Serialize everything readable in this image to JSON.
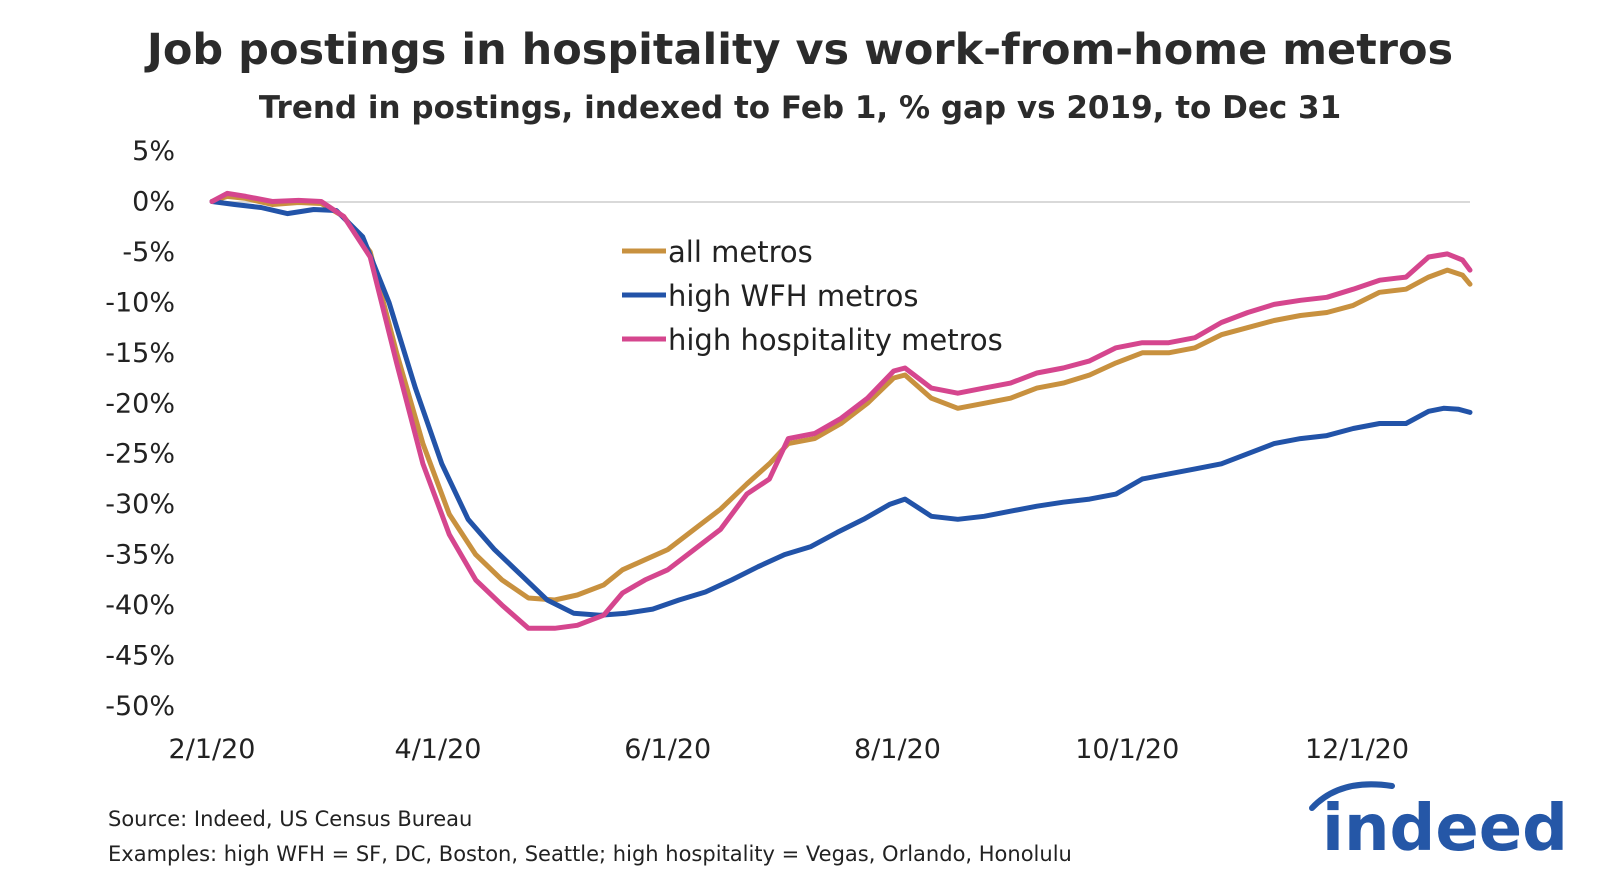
{
  "chart_data": {
    "type": "line",
    "title": "Job postings in hospitality vs work-from-home metros",
    "subtitle": "Trend in postings, indexed to Feb 1, % gap vs 2019, to Dec 31",
    "xlabel": "",
    "ylabel": "",
    "ylim": [
      -50,
      5
    ],
    "yticks": [
      "5%",
      "0%",
      "-5%",
      "-10%",
      "-15%",
      "-20%",
      "-25%",
      "-30%",
      "-35%",
      "-40%",
      "-45%",
      "-50%"
    ],
    "xticks": [
      "2/1/20",
      "4/1/20",
      "6/1/20",
      "8/1/20",
      "10/1/20",
      "12/1/20"
    ],
    "x_start": "2020-02-01",
    "x_end": "2020-12-31",
    "grid": false,
    "legend": "inside-top-center",
    "series": [
      {
        "name": "all metros",
        "color": "#c8913f",
        "points": [
          [
            "2020-02-01",
            0
          ],
          [
            "2020-02-05",
            0.5
          ],
          [
            "2020-02-10",
            0.3
          ],
          [
            "2020-02-17",
            -0.3
          ],
          [
            "2020-02-24",
            -0.1
          ],
          [
            "2020-03-01",
            -0.2
          ],
          [
            "2020-03-07",
            -1.5
          ],
          [
            "2020-03-14",
            -5
          ],
          [
            "2020-03-21",
            -15
          ],
          [
            "2020-03-28",
            -24
          ],
          [
            "2020-04-04",
            -31
          ],
          [
            "2020-04-11",
            -35
          ],
          [
            "2020-04-18",
            -37.5
          ],
          [
            "2020-04-25",
            -39.3
          ],
          [
            "2020-05-02",
            -39.5
          ],
          [
            "2020-05-08",
            -39
          ],
          [
            "2020-05-15",
            -38
          ],
          [
            "2020-05-20",
            -36.5
          ],
          [
            "2020-05-26",
            -35.5
          ],
          [
            "2020-06-01",
            -34.5
          ],
          [
            "2020-06-08",
            -32.5
          ],
          [
            "2020-06-15",
            -30.5
          ],
          [
            "2020-06-22",
            -28
          ],
          [
            "2020-06-28",
            -26
          ],
          [
            "2020-07-03",
            -24
          ],
          [
            "2020-07-10",
            -23.5
          ],
          [
            "2020-07-17",
            -22
          ],
          [
            "2020-07-24",
            -20
          ],
          [
            "2020-07-31",
            -17.5
          ],
          [
            "2020-08-03",
            -17.2
          ],
          [
            "2020-08-10",
            -19.5
          ],
          [
            "2020-08-17",
            -20.5
          ],
          [
            "2020-08-24",
            -20
          ],
          [
            "2020-08-31",
            -19.5
          ],
          [
            "2020-09-07",
            -18.5
          ],
          [
            "2020-09-14",
            -18
          ],
          [
            "2020-09-21",
            -17.2
          ],
          [
            "2020-09-28",
            -16
          ],
          [
            "2020-10-05",
            -15
          ],
          [
            "2020-10-12",
            -15
          ],
          [
            "2020-10-19",
            -14.5
          ],
          [
            "2020-10-26",
            -13.2
          ],
          [
            "2020-11-02",
            -12.5
          ],
          [
            "2020-11-09",
            -11.8
          ],
          [
            "2020-11-16",
            -11.3
          ],
          [
            "2020-11-23",
            -11
          ],
          [
            "2020-11-30",
            -10.3
          ],
          [
            "2020-12-07",
            -9
          ],
          [
            "2020-12-14",
            -8.7
          ],
          [
            "2020-12-20",
            -7.5
          ],
          [
            "2020-12-25",
            -6.8
          ],
          [
            "2020-12-29",
            -7.3
          ],
          [
            "2020-12-31",
            -8.2
          ]
        ]
      },
      {
        "name": "high WFH metros",
        "color": "#2253a8",
        "points": [
          [
            "2020-02-01",
            0
          ],
          [
            "2020-02-07",
            -0.3
          ],
          [
            "2020-02-14",
            -0.6
          ],
          [
            "2020-02-21",
            -1.2
          ],
          [
            "2020-02-28",
            -0.8
          ],
          [
            "2020-03-05",
            -0.9
          ],
          [
            "2020-03-12",
            -3.5
          ],
          [
            "2020-03-19",
            -10
          ],
          [
            "2020-03-26",
            -18.5
          ],
          [
            "2020-04-02",
            -26
          ],
          [
            "2020-04-09",
            -31.5
          ],
          [
            "2020-04-16",
            -34.5
          ],
          [
            "2020-04-23",
            -37
          ],
          [
            "2020-04-30",
            -39.5
          ],
          [
            "2020-05-07",
            -40.8
          ],
          [
            "2020-05-14",
            -41
          ],
          [
            "2020-05-21",
            -40.8
          ],
          [
            "2020-05-28",
            -40.4
          ],
          [
            "2020-06-04",
            -39.5
          ],
          [
            "2020-06-11",
            -38.7
          ],
          [
            "2020-06-18",
            -37.5
          ],
          [
            "2020-06-25",
            -36.2
          ],
          [
            "2020-07-02",
            -35
          ],
          [
            "2020-07-09",
            -34.2
          ],
          [
            "2020-07-16",
            -32.8
          ],
          [
            "2020-07-23",
            -31.5
          ],
          [
            "2020-07-30",
            -30
          ],
          [
            "2020-08-03",
            -29.5
          ],
          [
            "2020-08-10",
            -31.2
          ],
          [
            "2020-08-17",
            -31.5
          ],
          [
            "2020-08-24",
            -31.2
          ],
          [
            "2020-08-31",
            -30.7
          ],
          [
            "2020-09-07",
            -30.2
          ],
          [
            "2020-09-14",
            -29.8
          ],
          [
            "2020-09-21",
            -29.5
          ],
          [
            "2020-09-28",
            -29
          ],
          [
            "2020-10-05",
            -27.5
          ],
          [
            "2020-10-12",
            -27
          ],
          [
            "2020-10-19",
            -26.5
          ],
          [
            "2020-10-26",
            -26
          ],
          [
            "2020-11-02",
            -25
          ],
          [
            "2020-11-09",
            -24
          ],
          [
            "2020-11-16",
            -23.5
          ],
          [
            "2020-11-23",
            -23.2
          ],
          [
            "2020-11-30",
            -22.5
          ],
          [
            "2020-12-07",
            -22
          ],
          [
            "2020-12-14",
            -22
          ],
          [
            "2020-12-20",
            -20.8
          ],
          [
            "2020-12-24",
            -20.5
          ],
          [
            "2020-12-28",
            -20.6
          ],
          [
            "2020-12-31",
            -20.9
          ]
        ]
      },
      {
        "name": "high hospitality metros",
        "color": "#d5468e",
        "points": [
          [
            "2020-02-01",
            0
          ],
          [
            "2020-02-05",
            0.8
          ],
          [
            "2020-02-10",
            0.5
          ],
          [
            "2020-02-17",
            0
          ],
          [
            "2020-02-24",
            0.1
          ],
          [
            "2020-03-01",
            0
          ],
          [
            "2020-03-07",
            -1.5
          ],
          [
            "2020-03-14",
            -5.5
          ],
          [
            "2020-03-21",
            -16
          ],
          [
            "2020-03-28",
            -26
          ],
          [
            "2020-04-04",
            -33
          ],
          [
            "2020-04-11",
            -37.5
          ],
          [
            "2020-04-18",
            -40
          ],
          [
            "2020-04-25",
            -42.3
          ],
          [
            "2020-05-02",
            -42.3
          ],
          [
            "2020-05-08",
            -42
          ],
          [
            "2020-05-15",
            -41
          ],
          [
            "2020-05-20",
            -38.8
          ],
          [
            "2020-05-26",
            -37.5
          ],
          [
            "2020-06-01",
            -36.5
          ],
          [
            "2020-06-08",
            -34.5
          ],
          [
            "2020-06-15",
            -32.5
          ],
          [
            "2020-06-22",
            -29
          ],
          [
            "2020-06-28",
            -27.5
          ],
          [
            "2020-07-03",
            -23.5
          ],
          [
            "2020-07-10",
            -23
          ],
          [
            "2020-07-17",
            -21.5
          ],
          [
            "2020-07-24",
            -19.5
          ],
          [
            "2020-07-31",
            -16.8
          ],
          [
            "2020-08-03",
            -16.5
          ],
          [
            "2020-08-10",
            -18.5
          ],
          [
            "2020-08-17",
            -19
          ],
          [
            "2020-08-24",
            -18.5
          ],
          [
            "2020-08-31",
            -18
          ],
          [
            "2020-09-07",
            -17
          ],
          [
            "2020-09-14",
            -16.5
          ],
          [
            "2020-09-21",
            -15.8
          ],
          [
            "2020-09-28",
            -14.5
          ],
          [
            "2020-10-05",
            -14
          ],
          [
            "2020-10-12",
            -14
          ],
          [
            "2020-10-19",
            -13.5
          ],
          [
            "2020-10-26",
            -12
          ],
          [
            "2020-11-02",
            -11
          ],
          [
            "2020-11-09",
            -10.2
          ],
          [
            "2020-11-16",
            -9.8
          ],
          [
            "2020-11-23",
            -9.5
          ],
          [
            "2020-11-30",
            -8.7
          ],
          [
            "2020-12-07",
            -7.8
          ],
          [
            "2020-12-14",
            -7.5
          ],
          [
            "2020-12-20",
            -5.5
          ],
          [
            "2020-12-25",
            -5.2
          ],
          [
            "2020-12-29",
            -5.8
          ],
          [
            "2020-12-31",
            -6.8
          ]
        ]
      }
    ],
    "notes": [
      "Source: Indeed, US Census Bureau",
      "Examples: high WFH = SF, DC, Boston, Seattle; high hospitality = Vegas, Orlando, Honolulu"
    ]
  },
  "logo": {
    "text": "indeed",
    "color": "#2557a7"
  }
}
